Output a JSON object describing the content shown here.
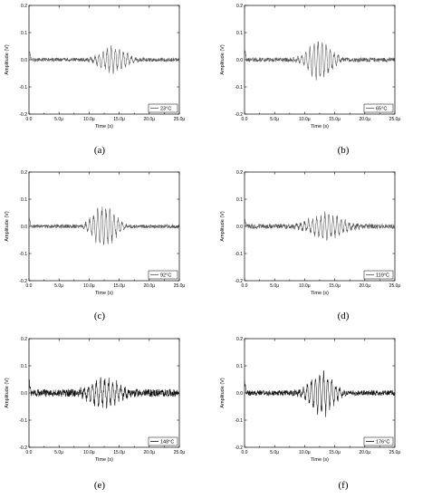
{
  "chart_data": [
    {
      "panel": "a",
      "type": "line",
      "caption": "(a)",
      "xlabel": "Time (s)",
      "ylabel": "Amplitude (V)",
      "xlim": [
        0,
        25
      ],
      "ylim": [
        -0.2,
        0.2
      ],
      "x_ticks": [
        "0.0",
        "5.0μ",
        "10.0μ",
        "15.0μ",
        "20.0μ",
        "25.0μ"
      ],
      "y_ticks": [
        "0.2",
        "0.1",
        "0.0",
        "-0.1",
        "-0.2"
      ],
      "legend": "23°C",
      "legend_position": "bottom-right",
      "series_color": "#555555",
      "signal": {
        "noise_amp": 0.007,
        "burst_center": 14.0,
        "burst_width": 2.6,
        "burst_amp": 0.055,
        "offset": 0.0,
        "initial_spike": 0.04
      }
    },
    {
      "panel": "b",
      "type": "line",
      "caption": "(b)",
      "xlabel": "Time (s)",
      "ylabel": "Amplitude (V)",
      "xlim": [
        0,
        25
      ],
      "ylim": [
        -0.2,
        0.2
      ],
      "x_ticks": [
        "0.0",
        "5.0μ",
        "10.0μ",
        "15.0μ",
        "20.0μ",
        "25.0μ"
      ],
      "y_ticks": [
        "0.2",
        "0.1",
        "0.0",
        "-0.1",
        "-0.2"
      ],
      "legend": "65°C",
      "legend_position": "bottom-right",
      "series_color": "#555555",
      "signal": {
        "noise_amp": 0.008,
        "burst_center": 12.5,
        "burst_width": 2.4,
        "burst_amp": 0.085,
        "offset": 0.0,
        "initial_spike": 0.04
      }
    },
    {
      "panel": "c",
      "type": "line",
      "caption": "(c)",
      "xlabel": "Time (s)",
      "ylabel": "Amplitude (V)",
      "xlim": [
        0,
        25
      ],
      "ylim": [
        -0.2,
        0.2
      ],
      "x_ticks": [
        "0.0",
        "5.0μ",
        "10.0μ",
        "15.0μ",
        "20.0μ",
        "25.0μ"
      ],
      "y_ticks": [
        "0.2",
        "0.1",
        "0.0",
        "-0.1",
        "-0.2"
      ],
      "legend": "92°C",
      "legend_position": "bottom-right",
      "series_color": "#555555",
      "signal": {
        "noise_amp": 0.007,
        "burst_center": 12.5,
        "burst_width": 2.3,
        "burst_amp": 0.085,
        "offset": 0.0,
        "initial_spike": 0.03
      }
    },
    {
      "panel": "d",
      "type": "line",
      "caption": "(d)",
      "xlabel": "Time (s)",
      "ylabel": "Amplitude (V)",
      "xlim": [
        0,
        25
      ],
      "ylim": [
        -0.2,
        0.2
      ],
      "x_ticks": [
        "0.0",
        "5.0μ",
        "10.0μ",
        "15.0μ",
        "20.0μ",
        "25.0μ"
      ],
      "y_ticks": [
        "0.2",
        "0.1",
        "0.0",
        "-0.1",
        "-0.2"
      ],
      "legend": "119°C",
      "legend_position": "bottom-right",
      "series_color": "#555555",
      "signal": {
        "noise_amp": 0.009,
        "burst_center": 13.5,
        "burst_width": 3.5,
        "burst_amp": 0.05,
        "offset": 0.0,
        "initial_spike": 0.03
      }
    },
    {
      "panel": "e",
      "type": "line",
      "caption": "(e)",
      "xlabel": "Time (s)",
      "ylabel": "Amplitude (V)",
      "xlim": [
        0,
        25
      ],
      "ylim": [
        -0.2,
        0.2
      ],
      "x_ticks": [
        "0.0",
        "5.0μ",
        "10.0μ",
        "15.0μ",
        "20.0μ",
        "25.0μ"
      ],
      "y_ticks": [
        "0.2",
        "0.1",
        "0.0",
        "-0.1",
        "-0.2"
      ],
      "legend": "148°C",
      "legend_position": "bottom-right",
      "series_color": "#111111",
      "signal": {
        "noise_amp": 0.014,
        "burst_center": 12.5,
        "burst_width": 3.0,
        "burst_amp": 0.06,
        "offset": 0.0,
        "initial_spike": 0.05
      }
    },
    {
      "panel": "f",
      "type": "line",
      "caption": "(f)",
      "xlabel": "Time (s)",
      "ylabel": "Amplitude (V)",
      "xlim": [
        0,
        25
      ],
      "ylim": [
        -0.2,
        0.2
      ],
      "x_ticks": [
        "0.0",
        "5.0μ",
        "10.0μ",
        "15.0μ",
        "20.0μ",
        "25.0μ"
      ],
      "y_ticks": [
        "0.2",
        "0.1",
        "0.0",
        "-0.1",
        "-0.2"
      ],
      "legend": "176°C",
      "legend_position": "bottom-right",
      "series_color": "#111111",
      "signal": {
        "noise_amp": 0.01,
        "burst_center": 12.8,
        "burst_width": 2.4,
        "burst_amp": 0.09,
        "offset": 0.0,
        "initial_spike": 0.04
      }
    }
  ]
}
